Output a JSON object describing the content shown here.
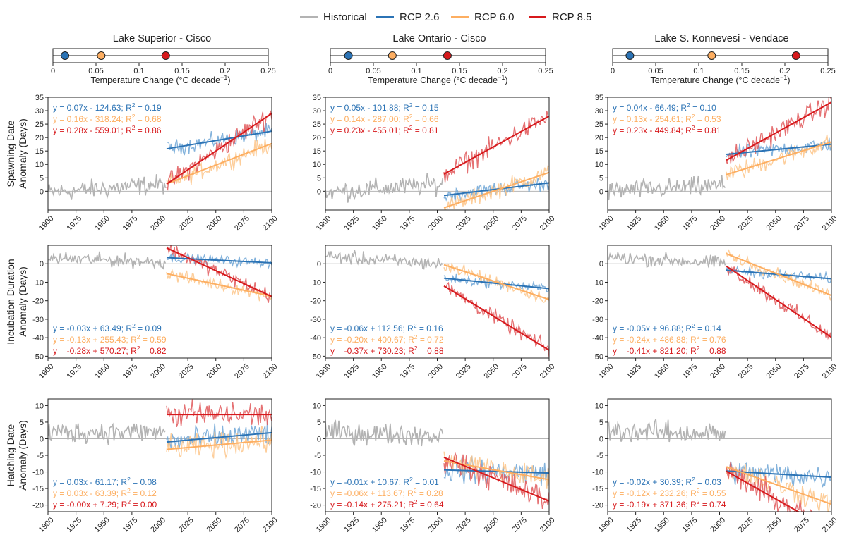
{
  "legend": [
    {
      "label": "Historical",
      "color": "#b3b3b3"
    },
    {
      "label": "RCP 2.6",
      "color": "#2b73b5"
    },
    {
      "label": "RCP 6.0",
      "color": "#fdae61"
    },
    {
      "label": "RCP 8.5",
      "color": "#d7191c"
    }
  ],
  "colors": {
    "historical": "#b3b3b3",
    "rcp26": "#2b73b5",
    "rcp60": "#fdae61",
    "rcp85": "#d7191c",
    "zero_line": "#b5b5b5"
  },
  "temp_axis": {
    "xlabel_main": "Temperature Change (°C decade",
    "xlabel_sup": "−1",
    "xlabel_close": ")",
    "ticks": [
      "0",
      "0.05",
      "0.1",
      "0.15",
      "0.2",
      "0.25"
    ]
  },
  "row_ylabels": [
    [
      "Spawning Date",
      "Anomaly (Days)"
    ],
    [
      "Incubation Duration",
      "Anomaly (Days)"
    ],
    [
      "Hatching Date",
      "Anomaly (Days)"
    ]
  ],
  "year_ticks": [
    "1900",
    "1925",
    "1950",
    "1975",
    "2000",
    "2025",
    "2050",
    "2075",
    "2100"
  ],
  "chart_data": {
    "type": "line",
    "x_range": [
      1900,
      2100
    ],
    "historical_span": [
      1900,
      2005
    ],
    "projection_span": [
      2006,
      2100
    ],
    "lakes": [
      {
        "title": "Lake Superior - Cisco",
        "temp_change": {
          "rcp26": 0.014,
          "rcp60": 0.056,
          "rcp85": 0.131
        }
      },
      {
        "title": "Lake Ontario - Cisco",
        "temp_change": {
          "rcp26": 0.021,
          "rcp60": 0.072,
          "rcp85": 0.136
        }
      },
      {
        "title": "Lake S. Konnevesi - Vendace",
        "temp_change": {
          "rcp26": 0.02,
          "rcp60": 0.115,
          "rcp85": 0.213
        }
      }
    ],
    "rows": [
      {
        "metric": "Spawning Date",
        "ylim": [
          -7,
          35
        ],
        "yticks": [
          "0",
          "5",
          "10",
          "15",
          "20",
          "25",
          "30",
          "35"
        ],
        "ytick_values": [
          0,
          5,
          10,
          15,
          20,
          25,
          30,
          35
        ],
        "label_pos": "top",
        "panels": [
          {
            "hist_level": 1,
            "hist_trend": 0.03,
            "fits": [
              {
                "series": "rcp26",
                "slope": 0.07,
                "intercept": -124.63,
                "eq": "y = 0.07x - 124.63; R",
                "r2": "= 0.19"
              },
              {
                "series": "rcp60",
                "slope": 0.16,
                "intercept": -318.24,
                "eq": "y = 0.16x - 318.24; R",
                "r2": "= 0.68"
              },
              {
                "series": "rcp85",
                "slope": 0.28,
                "intercept": -559.01,
                "eq": "y = 0.28x - 559.01; R",
                "r2": "= 0.86"
              }
            ]
          },
          {
            "hist_level": 1,
            "hist_trend": 0.03,
            "fits": [
              {
                "series": "rcp26",
                "slope": 0.05,
                "intercept": -101.88,
                "eq": "y = 0.05x - 101.88; R",
                "r2": "= 0.15"
              },
              {
                "series": "rcp60",
                "slope": 0.14,
                "intercept": -287.0,
                "eq": "y = 0.14x - 287.00; R",
                "r2": "= 0.66"
              },
              {
                "series": "rcp85",
                "slope": 0.23,
                "intercept": -455.01,
                "eq": "y = 0.23x - 455.01; R",
                "r2": "= 0.81"
              }
            ]
          },
          {
            "hist_level": 1,
            "hist_trend": 0.02,
            "fits": [
              {
                "series": "rcp26",
                "slope": 0.04,
                "intercept": -66.49,
                "eq": "y = 0.04x - 66.49; R",
                "r2": "= 0.10"
              },
              {
                "series": "rcp60",
                "slope": 0.13,
                "intercept": -254.61,
                "eq": "y = 0.13x - 254.61; R",
                "r2": "= 0.53"
              },
              {
                "series": "rcp85",
                "slope": 0.23,
                "intercept": -449.84,
                "eq": "y = 0.23x - 449.84; R",
                "r2": "= 0.81"
              }
            ]
          }
        ]
      },
      {
        "metric": "Incubation Duration",
        "ylim": [
          -51,
          10
        ],
        "yticks": [
          "0",
          "-10",
          "-20",
          "-30",
          "-40",
          "-50"
        ],
        "ytick_values": [
          0,
          -10,
          -20,
          -30,
          -40,
          -50
        ],
        "label_pos": "bottom",
        "panels": [
          {
            "hist_level": 2,
            "hist_trend": -0.02,
            "fits": [
              {
                "series": "rcp26",
                "slope": -0.03,
                "intercept": 63.49,
                "eq": "y = -0.03x + 63.49; R",
                "r2": "= 0.09"
              },
              {
                "series": "rcp60",
                "slope": -0.13,
                "intercept": 255.43,
                "eq": "y = -0.13x + 255.43; R",
                "r2": "= 0.59"
              },
              {
                "series": "rcp85",
                "slope": -0.28,
                "intercept": 570.27,
                "eq": "y = -0.28x + 570.27; R",
                "r2": "= 0.82"
              }
            ]
          },
          {
            "hist_level": 2,
            "hist_trend": -0.04,
            "fits": [
              {
                "series": "rcp26",
                "slope": -0.06,
                "intercept": 112.56,
                "eq": "y = -0.06x + 112.56; R",
                "r2": "= 0.16"
              },
              {
                "series": "rcp60",
                "slope": -0.2,
                "intercept": 400.67,
                "eq": "y = -0.20x + 400.67; R",
                "r2": "= 0.72"
              },
              {
                "series": "rcp85",
                "slope": -0.37,
                "intercept": 730.23,
                "eq": "y = -0.37x + 730.23; R",
                "r2": "= 0.88"
              }
            ]
          },
          {
            "hist_level": 2,
            "hist_trend": -0.03,
            "fits": [
              {
                "series": "rcp26",
                "slope": -0.05,
                "intercept": 96.88,
                "eq": "y = -0.05x + 96.88; R",
                "r2": "= 0.14"
              },
              {
                "series": "rcp60",
                "slope": -0.24,
                "intercept": 486.88,
                "eq": "y = -0.24x + 486.88; R",
                "r2": "= 0.76"
              },
              {
                "series": "rcp85",
                "slope": -0.41,
                "intercept": 821.2,
                "eq": "y = -0.41x + 821.20; R",
                "r2": "= 0.88"
              }
            ]
          }
        ]
      },
      {
        "metric": "Hatching Date",
        "ylim": [
          -22,
          12
        ],
        "yticks": [
          "10",
          "5",
          "0",
          "-5",
          "-10",
          "-15",
          "-20"
        ],
        "ytick_values": [
          10,
          5,
          0,
          -5,
          -10,
          -15,
          -20
        ],
        "label_pos": "bottom",
        "panels": [
          {
            "hist_level": 2,
            "hist_trend": 0.0,
            "fits": [
              {
                "series": "rcp26",
                "slope": 0.03,
                "intercept": -61.17,
                "eq": "y = 0.03x - 61.17; R",
                "r2": "= 0.08"
              },
              {
                "series": "rcp60",
                "slope": 0.03,
                "intercept": -63.39,
                "eq": "y = 0.03x - 63.39; R",
                "r2": "= 0.12"
              },
              {
                "series": "rcp85",
                "slope": -0.0,
                "intercept": 7.29,
                "eq": "y = -0.00x + 7.29; R",
                "r2": "= 0.00"
              }
            ]
          },
          {
            "hist_level": 1.5,
            "hist_trend": -0.01,
            "fits": [
              {
                "series": "rcp26",
                "slope": -0.01,
                "intercept": 10.67,
                "eq": "y = -0.01x + 10.67; R",
                "r2": "= 0.01"
              },
              {
                "series": "rcp60",
                "slope": -0.06,
                "intercept": 113.67,
                "eq": "y = -0.06x + 113.67; R",
                "r2": "= 0.28"
              },
              {
                "series": "rcp85",
                "slope": -0.14,
                "intercept": 275.21,
                "eq": "y = -0.14x + 275.21; R",
                "r2": "= 0.64"
              }
            ]
          },
          {
            "hist_level": 2,
            "hist_trend": -0.01,
            "fits": [
              {
                "series": "rcp26",
                "slope": -0.02,
                "intercept": 30.39,
                "eq": "y = -0.02x + 30.39; R",
                "r2": "= 0.03"
              },
              {
                "series": "rcp60",
                "slope": -0.12,
                "intercept": 232.26,
                "eq": "y = -0.12x + 232.26; R",
                "r2": "= 0.55"
              },
              {
                "series": "rcp85",
                "slope": -0.19,
                "intercept": 371.36,
                "eq": "y = -0.19x + 371.36; R",
                "r2": "= 0.74"
              }
            ]
          }
        ]
      }
    ]
  }
}
